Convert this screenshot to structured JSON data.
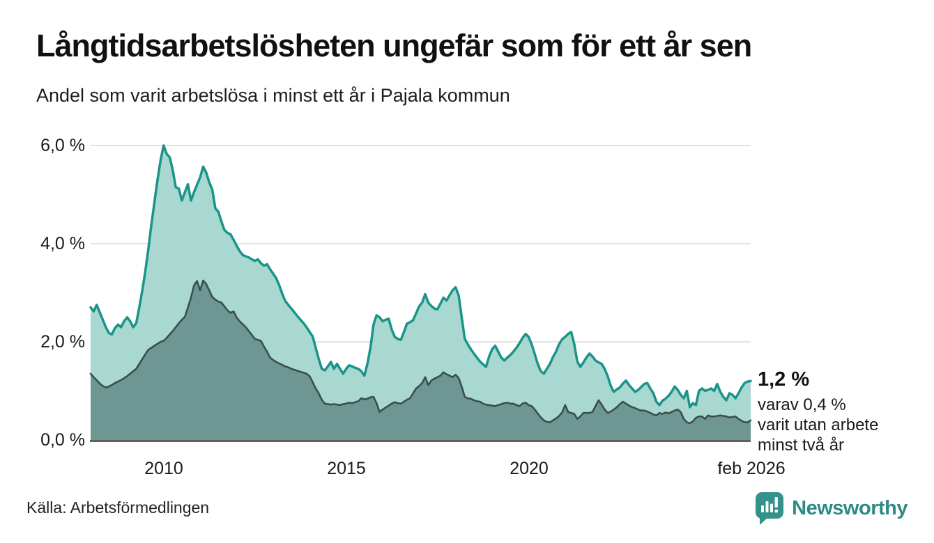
{
  "header": {
    "title": "Långtidsarbetslösheten ungefär som för ett år sen",
    "subtitle": "Andel som varit arbetslösa i minst ett år i Pajala kommun"
  },
  "annotation": {
    "value_label": "1,2 %",
    "note_line1": "varav 0,4 %",
    "note_line2": "varit utan arbete",
    "note_line3": "minst två år"
  },
  "footer": {
    "source": "Källa: Arbetsförmedlingen",
    "brand": "Newsworthy"
  },
  "colors": {
    "line_total": "#1a9488",
    "fill_total": "#a9d8d1",
    "line_two_years": "#3a4f4b",
    "fill_two_years": "#6e9793",
    "gridline": "#d8d8d8",
    "axis": "#3a3f3e",
    "text": "#111111",
    "brand_teal": "#33928a",
    "brand_text_teal": "#2d8a84"
  },
  "chart_data": {
    "type": "area",
    "title": "Långtidsarbetslösheten ungefär som för ett år sen",
    "subtitle": "Andel som varit arbetslösa i minst ett år i Pajala kommun",
    "unit": "%",
    "frequency": "monthly",
    "x_start": "2008-01",
    "x_end": "2026-02",
    "ylim": [
      0,
      6.0
    ],
    "grid": true,
    "y_ticks": [
      {
        "label": "6,0 %",
        "value": 6
      },
      {
        "label": "4,0 %",
        "value": 4
      },
      {
        "label": "2,0 %",
        "value": 2
      },
      {
        "label": "0,0 %",
        "value": 0
      }
    ],
    "x_ticks": [
      {
        "label": "2010",
        "year": 2010
      },
      {
        "label": "2015",
        "year": 2015
      },
      {
        "label": "2020",
        "year": 2020
      },
      {
        "label": "feb 2026",
        "year": 2026.08
      }
    ],
    "end_labels": {
      "total": "1,2 %",
      "two_years": "0,4 %"
    },
    "series": [
      {
        "name": "Andel som varit arbetslösa i minst ett år",
        "color": "#1a9488",
        "fill": "#a9d8d1",
        "values": [
          2.7,
          2.62,
          2.75,
          2.6,
          2.45,
          2.3,
          2.18,
          2.15,
          2.28,
          2.35,
          2.3,
          2.42,
          2.5,
          2.42,
          2.3,
          2.38,
          2.7,
          3.05,
          3.45,
          3.9,
          4.4,
          4.85,
          5.3,
          5.7,
          6.0,
          5.83,
          5.76,
          5.5,
          5.15,
          5.12,
          4.88,
          5.05,
          5.21,
          4.88,
          5.05,
          5.2,
          5.35,
          5.57,
          5.45,
          5.25,
          5.1,
          4.72,
          4.65,
          4.45,
          4.28,
          4.22,
          4.19,
          4.08,
          3.96,
          3.85,
          3.77,
          3.74,
          3.72,
          3.68,
          3.65,
          3.68,
          3.6,
          3.55,
          3.58,
          3.48,
          3.39,
          3.3,
          3.15,
          2.98,
          2.83,
          2.75,
          2.68,
          2.6,
          2.52,
          2.45,
          2.38,
          2.3,
          2.2,
          2.11,
          1.88,
          1.65,
          1.45,
          1.42,
          1.5,
          1.59,
          1.45,
          1.55,
          1.45,
          1.35,
          1.45,
          1.52,
          1.5,
          1.47,
          1.45,
          1.4,
          1.31,
          1.55,
          1.88,
          2.35,
          2.54,
          2.5,
          2.42,
          2.45,
          2.47,
          2.25,
          2.1,
          2.06,
          2.04,
          2.2,
          2.37,
          2.4,
          2.44,
          2.58,
          2.72,
          2.8,
          2.97,
          2.8,
          2.73,
          2.68,
          2.66,
          2.78,
          2.9,
          2.84,
          2.95,
          3.05,
          3.11,
          2.94,
          2.5,
          2.06,
          1.95,
          1.85,
          1.76,
          1.68,
          1.6,
          1.54,
          1.49,
          1.7,
          1.85,
          1.92,
          1.8,
          1.68,
          1.62,
          1.68,
          1.73,
          1.8,
          1.88,
          1.97,
          2.08,
          2.16,
          2.1,
          1.95,
          1.75,
          1.55,
          1.4,
          1.35,
          1.45,
          1.55,
          1.69,
          1.8,
          1.95,
          2.05,
          2.1,
          2.16,
          2.2,
          1.95,
          1.6,
          1.49,
          1.58,
          1.68,
          1.76,
          1.7,
          1.62,
          1.58,
          1.55,
          1.45,
          1.3,
          1.1,
          0.98,
          1.03,
          1.07,
          1.15,
          1.21,
          1.12,
          1.05,
          0.98,
          1.02,
          1.08,
          1.14,
          1.16,
          1.05,
          0.95,
          0.78,
          0.71,
          0.8,
          0.84,
          0.9,
          0.98,
          1.09,
          1.02,
          0.92,
          0.85,
          1.0,
          0.67,
          0.75,
          0.71,
          1.0,
          1.05,
          1.0,
          1.02,
          1.05,
          1.0,
          1.14,
          0.98,
          0.88,
          0.81,
          0.95,
          0.92,
          0.85,
          0.95,
          1.07,
          1.16,
          1.19,
          1.2
        ]
      },
      {
        "name": "varav varit utan arbete minst två år",
        "color": "#3a4f4b",
        "fill": "#6e9793",
        "values": [
          1.35,
          1.28,
          1.22,
          1.15,
          1.1,
          1.07,
          1.09,
          1.12,
          1.16,
          1.19,
          1.22,
          1.26,
          1.3,
          1.35,
          1.4,
          1.45,
          1.55,
          1.65,
          1.75,
          1.84,
          1.88,
          1.92,
          1.96,
          2.0,
          2.02,
          2.08,
          2.15,
          2.22,
          2.3,
          2.38,
          2.45,
          2.51,
          2.7,
          2.9,
          3.15,
          3.24,
          3.05,
          3.25,
          3.18,
          3.05,
          2.91,
          2.86,
          2.82,
          2.8,
          2.72,
          2.64,
          2.59,
          2.62,
          2.5,
          2.42,
          2.36,
          2.3,
          2.22,
          2.14,
          2.06,
          2.04,
          2.02,
          1.9,
          1.8,
          1.68,
          1.63,
          1.59,
          1.56,
          1.53,
          1.5,
          1.48,
          1.45,
          1.43,
          1.41,
          1.39,
          1.37,
          1.35,
          1.3,
          1.18,
          1.05,
          0.95,
          0.82,
          0.74,
          0.73,
          0.72,
          0.73,
          0.72,
          0.71,
          0.73,
          0.74,
          0.76,
          0.75,
          0.77,
          0.79,
          0.85,
          0.83,
          0.84,
          0.87,
          0.88,
          0.75,
          0.57,
          0.62,
          0.66,
          0.7,
          0.74,
          0.77,
          0.75,
          0.74,
          0.78,
          0.82,
          0.85,
          0.95,
          1.05,
          1.1,
          1.16,
          1.28,
          1.12,
          1.21,
          1.25,
          1.28,
          1.31,
          1.38,
          1.34,
          1.31,
          1.28,
          1.33,
          1.26,
          1.09,
          0.88,
          0.85,
          0.84,
          0.81,
          0.79,
          0.78,
          0.74,
          0.72,
          0.71,
          0.7,
          0.69,
          0.71,
          0.73,
          0.75,
          0.76,
          0.74,
          0.74,
          0.71,
          0.69,
          0.74,
          0.76,
          0.71,
          0.69,
          0.62,
          0.54,
          0.46,
          0.4,
          0.37,
          0.36,
          0.4,
          0.44,
          0.49,
          0.56,
          0.71,
          0.57,
          0.55,
          0.53,
          0.43,
          0.48,
          0.55,
          0.55,
          0.55,
          0.57,
          0.69,
          0.81,
          0.72,
          0.62,
          0.55,
          0.58,
          0.62,
          0.67,
          0.73,
          0.78,
          0.74,
          0.7,
          0.67,
          0.65,
          0.62,
          0.6,
          0.6,
          0.58,
          0.55,
          0.52,
          0.5,
          0.55,
          0.53,
          0.56,
          0.54,
          0.57,
          0.6,
          0.62,
          0.57,
          0.43,
          0.36,
          0.34,
          0.38,
          0.45,
          0.48,
          0.48,
          0.43,
          0.5,
          0.48,
          0.48,
          0.49,
          0.5,
          0.49,
          0.48,
          0.46,
          0.47,
          0.48,
          0.43,
          0.39,
          0.36,
          0.36,
          0.4
        ]
      }
    ]
  }
}
